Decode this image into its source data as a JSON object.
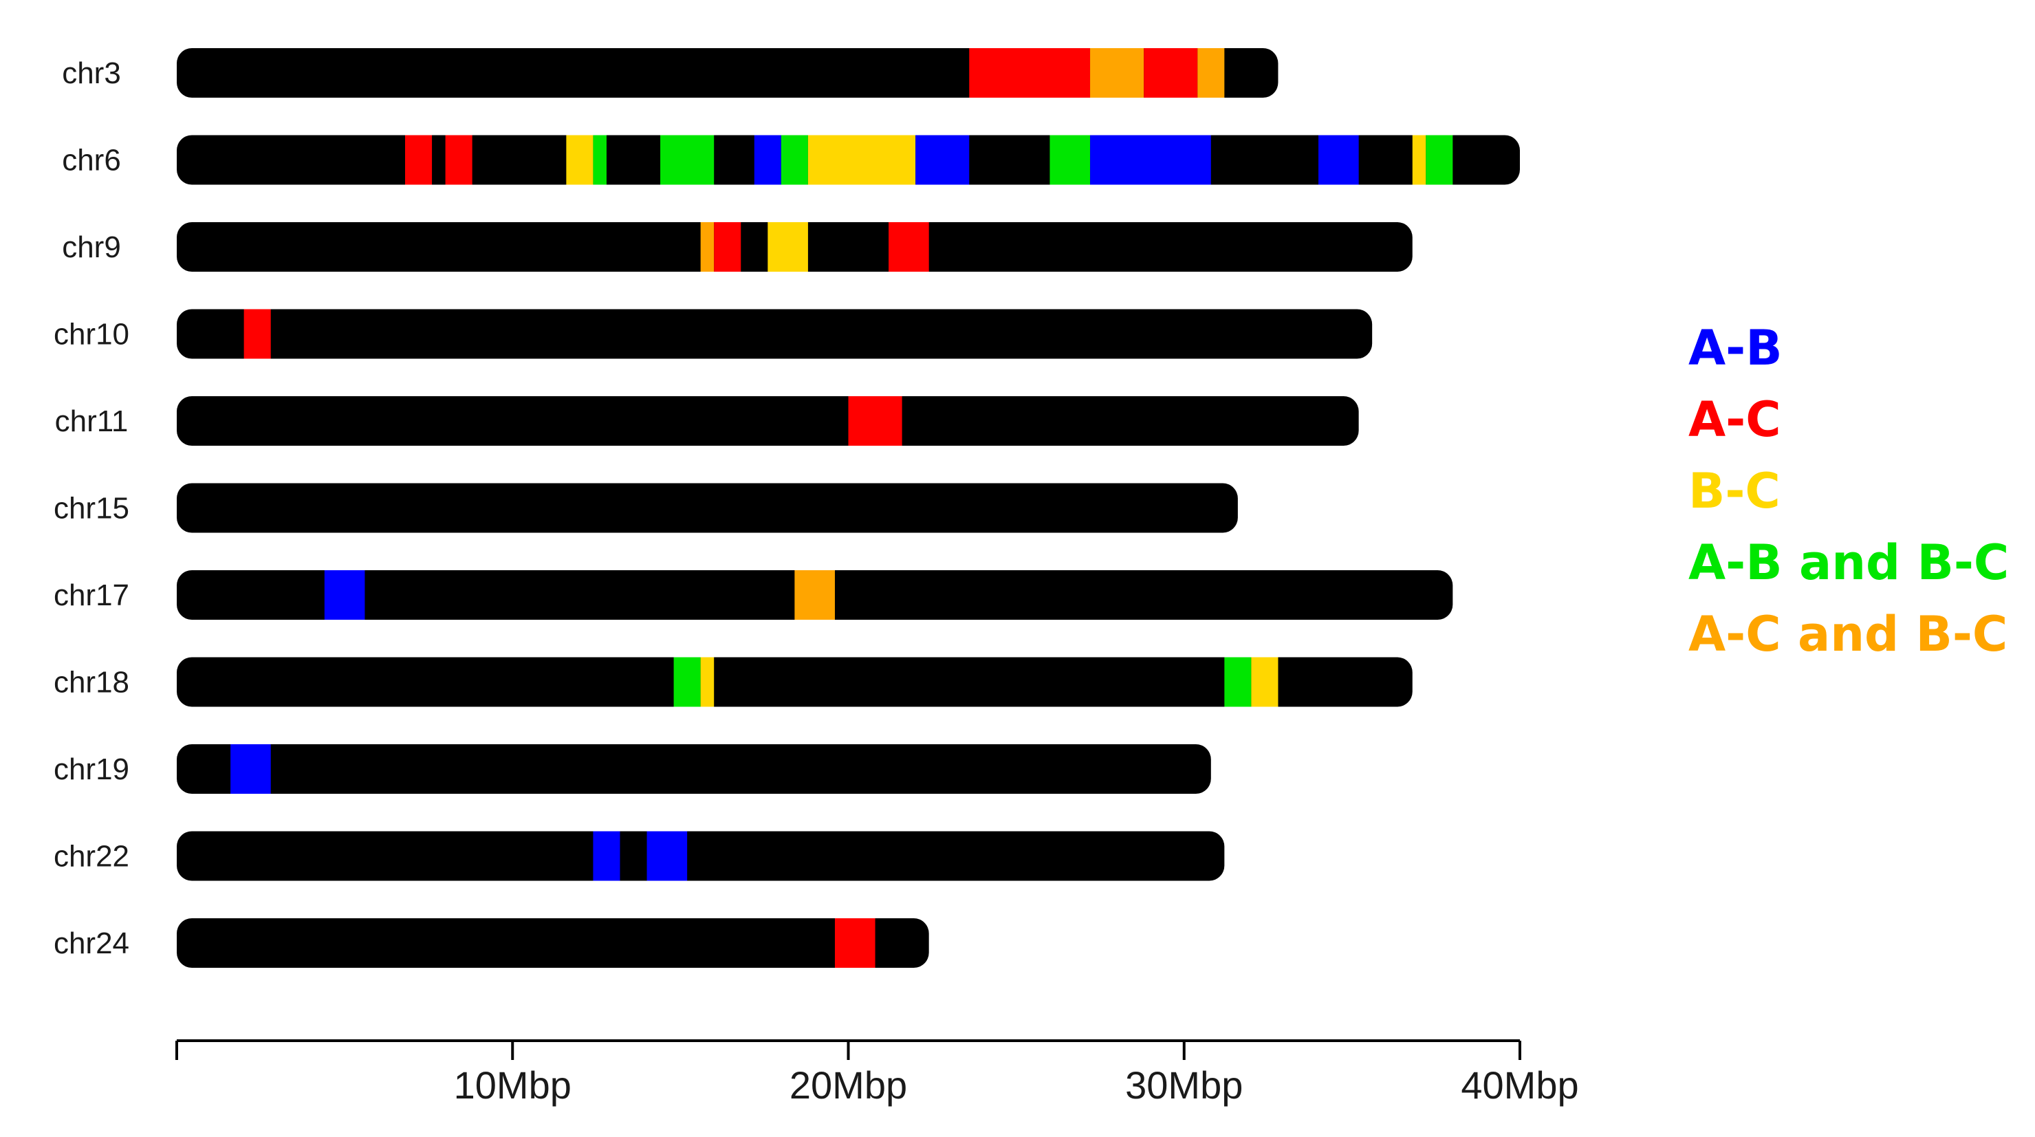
{
  "chart_data": {
    "type": "bar",
    "orientation": "horizontal",
    "x_unit": "Mbp",
    "xlim": [
      0,
      40
    ],
    "xticks": [
      {
        "value": 0,
        "label": ""
      },
      {
        "value": 10,
        "label": "10Mbp"
      },
      {
        "value": 20,
        "label": "20Mbp"
      },
      {
        "value": 30,
        "label": "30Mbp"
      },
      {
        "value": 40,
        "label": "40Mbp"
      }
    ],
    "grid": false,
    "legend_position": "right",
    "colors": {
      "chromosome": "#000000",
      "A-B": "#0000ff",
      "A-C": "#ff0000",
      "B-C": "#ffd700",
      "A-B and B-C": "#00e600",
      "A-C and B-C": "#ffa500"
    },
    "legend": [
      {
        "label": "A-B",
        "key": "A-B"
      },
      {
        "label": "A-C",
        "key": "A-C"
      },
      {
        "label": "B-C",
        "key": "B-C"
      },
      {
        "label": "A-B and B-C",
        "key": "A-B and B-C"
      },
      {
        "label": "A-C and B-C",
        "key": "A-C and B-C"
      }
    ],
    "chromosomes": [
      {
        "name": "chr3",
        "length": 32.8,
        "segments": [
          {
            "start": 23.6,
            "end": 27.2,
            "type": "A-C"
          },
          {
            "start": 27.2,
            "end": 28.8,
            "type": "A-C and B-C"
          },
          {
            "start": 28.8,
            "end": 30.4,
            "type": "A-C"
          },
          {
            "start": 30.4,
            "end": 31.2,
            "type": "A-C and B-C"
          }
        ]
      },
      {
        "name": "chr6",
        "length": 40.0,
        "segments": [
          {
            "start": 6.8,
            "end": 7.6,
            "type": "A-C"
          },
          {
            "start": 8.0,
            "end": 8.8,
            "type": "A-C"
          },
          {
            "start": 11.6,
            "end": 12.4,
            "type": "B-C"
          },
          {
            "start": 12.4,
            "end": 12.8,
            "type": "A-B and B-C"
          },
          {
            "start": 14.4,
            "end": 16.0,
            "type": "A-B and B-C"
          },
          {
            "start": 17.2,
            "end": 18.0,
            "type": "A-B"
          },
          {
            "start": 18.0,
            "end": 18.8,
            "type": "A-B and B-C"
          },
          {
            "start": 18.8,
            "end": 22.0,
            "type": "B-C"
          },
          {
            "start": 22.0,
            "end": 23.6,
            "type": "A-B"
          },
          {
            "start": 26.0,
            "end": 27.2,
            "type": "A-B and B-C"
          },
          {
            "start": 27.2,
            "end": 30.8,
            "type": "A-B"
          },
          {
            "start": 34.0,
            "end": 35.2,
            "type": "A-B"
          },
          {
            "start": 36.8,
            "end": 37.2,
            "type": "B-C"
          },
          {
            "start": 37.2,
            "end": 38.0,
            "type": "A-B and B-C"
          }
        ]
      },
      {
        "name": "chr9",
        "length": 36.8,
        "segments": [
          {
            "start": 15.6,
            "end": 16.0,
            "type": "A-C and B-C"
          },
          {
            "start": 16.0,
            "end": 16.8,
            "type": "A-C"
          },
          {
            "start": 17.6,
            "end": 18.8,
            "type": "B-C"
          },
          {
            "start": 21.2,
            "end": 22.4,
            "type": "A-C"
          }
        ]
      },
      {
        "name": "chr10",
        "length": 35.6,
        "segments": [
          {
            "start": 2.0,
            "end": 2.8,
            "type": "A-C"
          }
        ]
      },
      {
        "name": "chr11",
        "length": 35.2,
        "segments": [
          {
            "start": 20.0,
            "end": 21.6,
            "type": "A-C"
          }
        ]
      },
      {
        "name": "chr15",
        "length": 31.6,
        "segments": []
      },
      {
        "name": "chr17",
        "length": 38.0,
        "segments": [
          {
            "start": 4.4,
            "end": 5.6,
            "type": "A-B"
          },
          {
            "start": 18.4,
            "end": 19.6,
            "type": "A-C and B-C"
          }
        ]
      },
      {
        "name": "chr18",
        "length": 36.8,
        "segments": [
          {
            "start": 14.8,
            "end": 15.6,
            "type": "A-B and B-C"
          },
          {
            "start": 15.6,
            "end": 16.0,
            "type": "B-C"
          },
          {
            "start": 31.2,
            "end": 32.0,
            "type": "A-B and B-C"
          },
          {
            "start": 32.0,
            "end": 32.8,
            "type": "B-C"
          }
        ]
      },
      {
        "name": "chr19",
        "length": 30.8,
        "segments": [
          {
            "start": 1.6,
            "end": 2.8,
            "type": "A-B"
          }
        ]
      },
      {
        "name": "chr22",
        "length": 31.2,
        "segments": [
          {
            "start": 12.4,
            "end": 13.2,
            "type": "A-B"
          },
          {
            "start": 14.0,
            "end": 15.2,
            "type": "A-B"
          }
        ]
      },
      {
        "name": "chr24",
        "length": 22.4,
        "segments": [
          {
            "start": 19.6,
            "end": 20.8,
            "type": "A-C"
          }
        ]
      }
    ]
  }
}
